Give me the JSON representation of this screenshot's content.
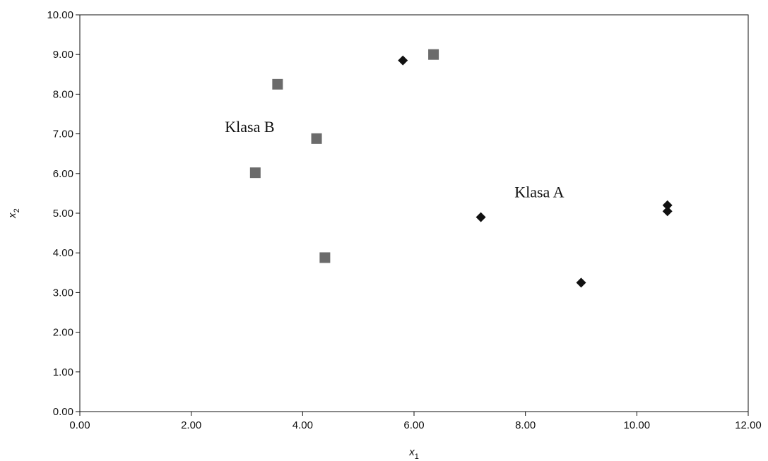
{
  "chart_data": {
    "type": "scatter",
    "title": "",
    "xlabel": "x",
    "xlabel_sub": "1",
    "ylabel": "x",
    "ylabel_sub": "2",
    "xlim": [
      0,
      12
    ],
    "ylim": [
      0,
      10
    ],
    "x_ticks": [
      "0.00",
      "2.00",
      "4.00",
      "6.00",
      "8.00",
      "10.00",
      "12.00"
    ],
    "y_ticks": [
      "0.00",
      "1.00",
      "2.00",
      "3.00",
      "4.00",
      "5.00",
      "6.00",
      "7.00",
      "8.00",
      "9.00",
      "10.00"
    ],
    "grid": false,
    "series": [
      {
        "name": "Klasa A",
        "marker": "diamond",
        "color": "#111111",
        "points": [
          {
            "x": 5.8,
            "y": 8.85
          },
          {
            "x": 7.2,
            "y": 4.9
          },
          {
            "x": 9.0,
            "y": 3.25
          },
          {
            "x": 10.55,
            "y": 5.2
          },
          {
            "x": 10.55,
            "y": 5.05
          }
        ]
      },
      {
        "name": "Klasa B",
        "marker": "square",
        "color": "#6b6b6b",
        "points": [
          {
            "x": 3.55,
            "y": 8.25
          },
          {
            "x": 6.35,
            "y": 9.0
          },
          {
            "x": 4.25,
            "y": 6.88
          },
          {
            "x": 3.15,
            "y": 6.02
          },
          {
            "x": 4.4,
            "y": 3.88
          }
        ]
      }
    ],
    "annotations": [
      {
        "text": "Klasa B",
        "x": 3.05,
        "y": 7.05
      },
      {
        "text": "Klasa A",
        "x": 8.25,
        "y": 5.4
      }
    ]
  }
}
